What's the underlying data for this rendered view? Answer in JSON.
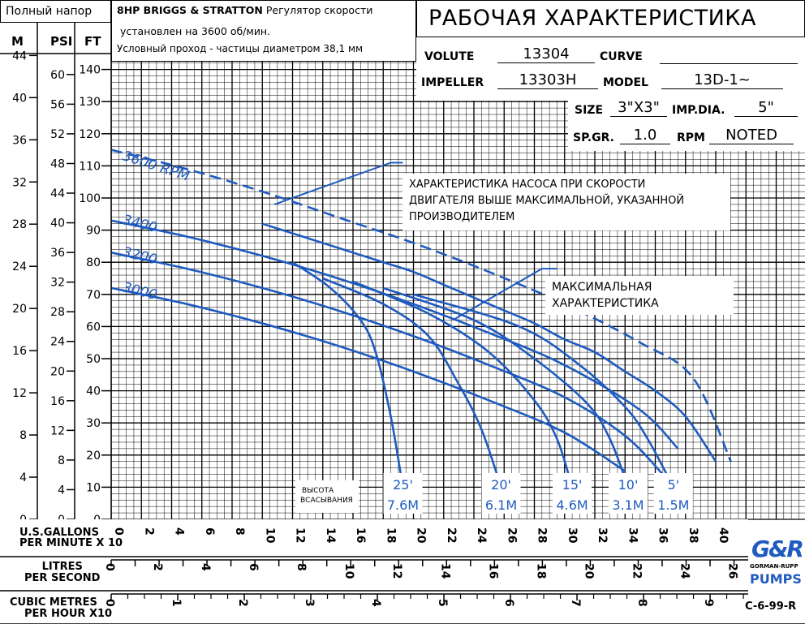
{
  "header": {
    "full_head": "Полный напор",
    "engine_bold": "8HP BRIGGS & STRATTON",
    "engine_rest": "Регулятор скорости",
    "engine_line2": "установлен на 3600 об/мин.",
    "engine_line3": "Условный проход - частицы диаметром 38,1 мм",
    "title": "РАБОЧАЯ ХАРАКТЕРИСТИКА",
    "volute_label": "VOLUTE",
    "volute_value": "13304",
    "curve_label": "CURVE",
    "curve_value": "",
    "impeller_label": "IMPELLER",
    "impeller_value": "13303H",
    "model_label": "MODEL",
    "model_value": "13D-1~",
    "size_label": "SIZE",
    "size_value": "3\"X3\"",
    "impdia_label": "IMP.DIA.",
    "impdia_value": "5\"",
    "spgr_label": "SP.GR.",
    "spgr_value": "1.0",
    "rpm_label": "RPM",
    "rpm_value": "NOTED"
  },
  "axis_headers": {
    "m": "M",
    "psi": "PSI",
    "ft": "FT"
  },
  "bottom": {
    "gpm_label_1": "U.S.GALLONS",
    "gpm_label_2": "PER MINUTE  X 10",
    "lps_label_1": "LITRES",
    "lps_label_2": "PER SECOND",
    "m3h_label_1": "CUBIC METRES",
    "m3h_label_2": "PER HOUR  X10",
    "code": "C-6-99-R",
    "logo_main": "G&R",
    "logo_sub": "GORMAN-RUPP",
    "logo_word": "PUMPS"
  },
  "annotations": {
    "over_speed": [
      "ХАРАКТЕРИСТИКА НАСОСА ПРИ СКОРОСТИ",
      "ДВИГАТЕЛЯ ВЫШЕ МАКСИМАЛЬНОЙ, УКАЗАННОЙ",
      "ПРОИЗВОДИТЕЛЕМ"
    ],
    "max_curve": [
      "МАКСИМАЛЬНАЯ",
      "ХАРАКТЕРИСТИКА"
    ],
    "suction": [
      "ВЫСОТА",
      "ВСАСЫВАНИЯ"
    ]
  },
  "colors": {
    "curve": "#1f5bbf",
    "grid": "#000000"
  },
  "chart_data": {
    "type": "line",
    "xlabel": "U.S.GALLONS PER MINUTE X 10",
    "ylabel": "FT",
    "xlim": [
      0,
      40
    ],
    "ylim": [
      0,
      150
    ],
    "x_ticks": [
      0,
      2,
      4,
      6,
      8,
      10,
      12,
      14,
      16,
      18,
      20,
      22,
      24,
      26,
      28,
      30,
      32,
      34,
      36,
      38,
      40
    ],
    "ft_ticks": [
      0,
      10,
      20,
      30,
      40,
      50,
      60,
      70,
      80,
      90,
      100,
      110,
      120,
      130,
      140
    ],
    "psi_ticks": [
      0,
      4,
      8,
      12,
      16,
      20,
      24,
      28,
      32,
      36,
      40,
      44,
      48,
      52,
      56,
      60
    ],
    "m_ticks": [
      0,
      4,
      8,
      12,
      16,
      20,
      24,
      28,
      32,
      36,
      40,
      44
    ],
    "lps_ticks": [
      0,
      2,
      4,
      6,
      8,
      10,
      12,
      14,
      16,
      18,
      20,
      22,
      24,
      26
    ],
    "m3h_ticks": [
      0,
      1,
      2,
      3,
      4,
      5,
      6,
      7,
      8,
      9
    ],
    "series": [
      {
        "name": "3600 RPM",
        "x": [
          0,
          5,
          10,
          15,
          20,
          25,
          30,
          35,
          38.5,
          41
        ],
        "y": [
          115,
          109,
          102,
          94,
          86,
          77,
          67,
          55,
          44,
          18
        ]
      },
      {
        "name": "3400",
        "x": [
          0,
          5,
          10,
          15,
          20,
          25,
          30,
          35,
          37.5
        ],
        "y": [
          93,
          88,
          82,
          75,
          67,
          58,
          48,
          34,
          22
        ]
      },
      {
        "name": "3200",
        "x": [
          0,
          5,
          10,
          15,
          20,
          25,
          30,
          34,
          36.5
        ],
        "y": [
          83,
          78,
          72,
          65,
          57,
          48,
          38,
          26,
          14
        ]
      },
      {
        "name": "3000",
        "x": [
          0,
          5,
          10,
          15,
          20,
          25,
          30,
          34
        ],
        "y": [
          72,
          67,
          61,
          54,
          46,
          37,
          27,
          15
        ]
      },
      {
        "name": "",
        "x": [
          10,
          12,
          14,
          16,
          18,
          20,
          22,
          24,
          26,
          28,
          30,
          32,
          34,
          36,
          38,
          40
        ],
        "y": [
          92,
          89,
          86,
          83,
          80,
          77,
          73,
          69,
          65,
          61,
          56,
          52,
          46,
          40,
          32,
          18
        ]
      }
    ],
    "suction_lines": [
      {
        "label": "25'",
        "label2": "7.6M",
        "x": [
          12,
          14.5,
          16.5,
          17.5,
          18.5,
          19.3
        ],
        "y": [
          80,
          72,
          62,
          52,
          32,
          10
        ]
      },
      {
        "label": "20'",
        "label2": "6.1M",
        "x": [
          14,
          18,
          21,
          23,
          24.5,
          25.8
        ],
        "y": [
          75,
          67,
          57,
          42,
          28,
          10
        ]
      },
      {
        "label": "15'",
        "label2": "4.6M",
        "x": [
          16,
          21,
          25,
          28,
          29.5,
          30.5
        ],
        "y": [
          74,
          64,
          52,
          37,
          25,
          10
        ]
      },
      {
        "label": "10'",
        "label2": "3.1M",
        "x": [
          18,
          24,
          28,
          31.5,
          33,
          34.2
        ],
        "y": [
          72,
          62,
          50,
          36,
          25,
          10
        ]
      },
      {
        "label": "5'",
        "label2": "1.5M",
        "x": [
          20,
          27,
          31,
          34,
          35.5,
          37.2
        ],
        "y": [
          70,
          60,
          48,
          35,
          25,
          10
        ]
      }
    ]
  }
}
